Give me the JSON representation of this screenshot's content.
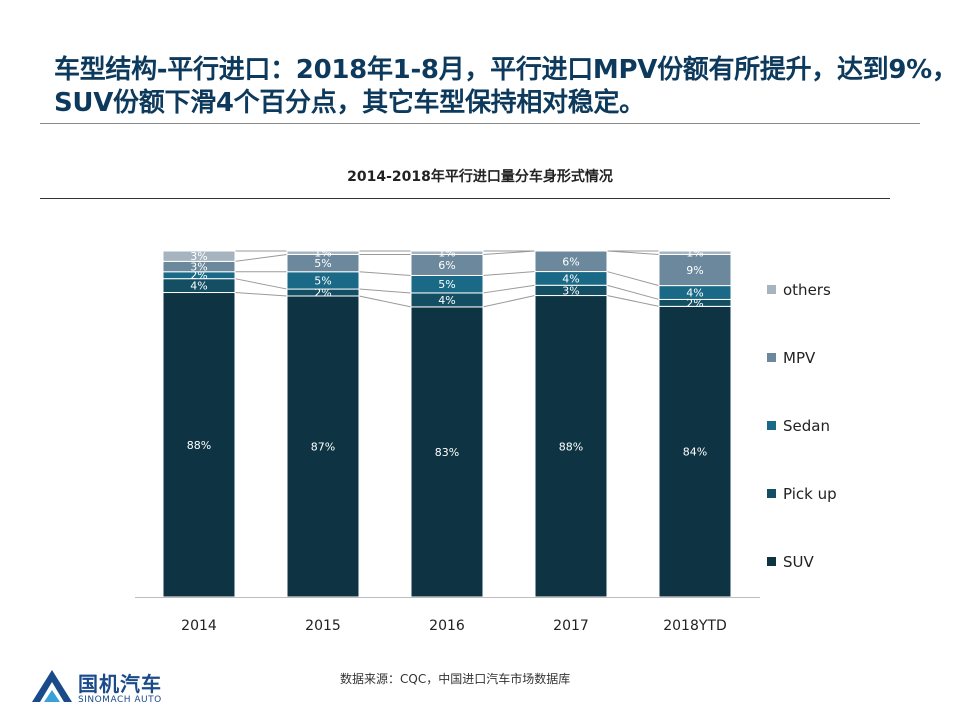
{
  "headline": {
    "line1": "车型结构-平行进口：2018年1-8月，平行进口MPV份额有所提升，达到9%，",
    "line2": "SUV份额下滑4个百分点，其它车型保持相对稳定。"
  },
  "source": "数据来源：CQC，中国进口汽车市场数据库",
  "logo": {
    "name": "国机汽车",
    "sub": "SINOMACH AUTO"
  },
  "chart_data": {
    "type": "bar",
    "stacked": true,
    "percent": true,
    "title": "2014-2018年平行进口量分车身形式情况",
    "categories": [
      "2014",
      "2015",
      "2016",
      "2017",
      "2018YTD"
    ],
    "series": [
      {
        "name": "SUV",
        "color": "#0e3444",
        "values": [
          88,
          87,
          83,
          88,
          84
        ],
        "labels": [
          "88%",
          "87%",
          "83%",
          "88%",
          "84%"
        ]
      },
      {
        "name": "Pick up",
        "color": "#134e63",
        "values": [
          4,
          2,
          4,
          3,
          2
        ],
        "labels": [
          "4%",
          "2%",
          "4%",
          "3%",
          "2%"
        ]
      },
      {
        "name": "Sedan",
        "color": "#1a6a87",
        "values": [
          2,
          5,
          5,
          4,
          4
        ],
        "labels": [
          "2%",
          "5%",
          "5%",
          "4%",
          "4%"
        ]
      },
      {
        "name": "MPV",
        "color": "#6b889c",
        "values": [
          3,
          5,
          6,
          6,
          9
        ],
        "labels": [
          "3%",
          "5%",
          "6%",
          "6%",
          "9%"
        ]
      },
      {
        "name": "others",
        "color": "#a6b4c0",
        "values": [
          3,
          1,
          1,
          0,
          1
        ],
        "labels": [
          "3%",
          "1%",
          "1%",
          "",
          "1%"
        ]
      }
    ],
    "legend_position": "right",
    "grid": false
  }
}
